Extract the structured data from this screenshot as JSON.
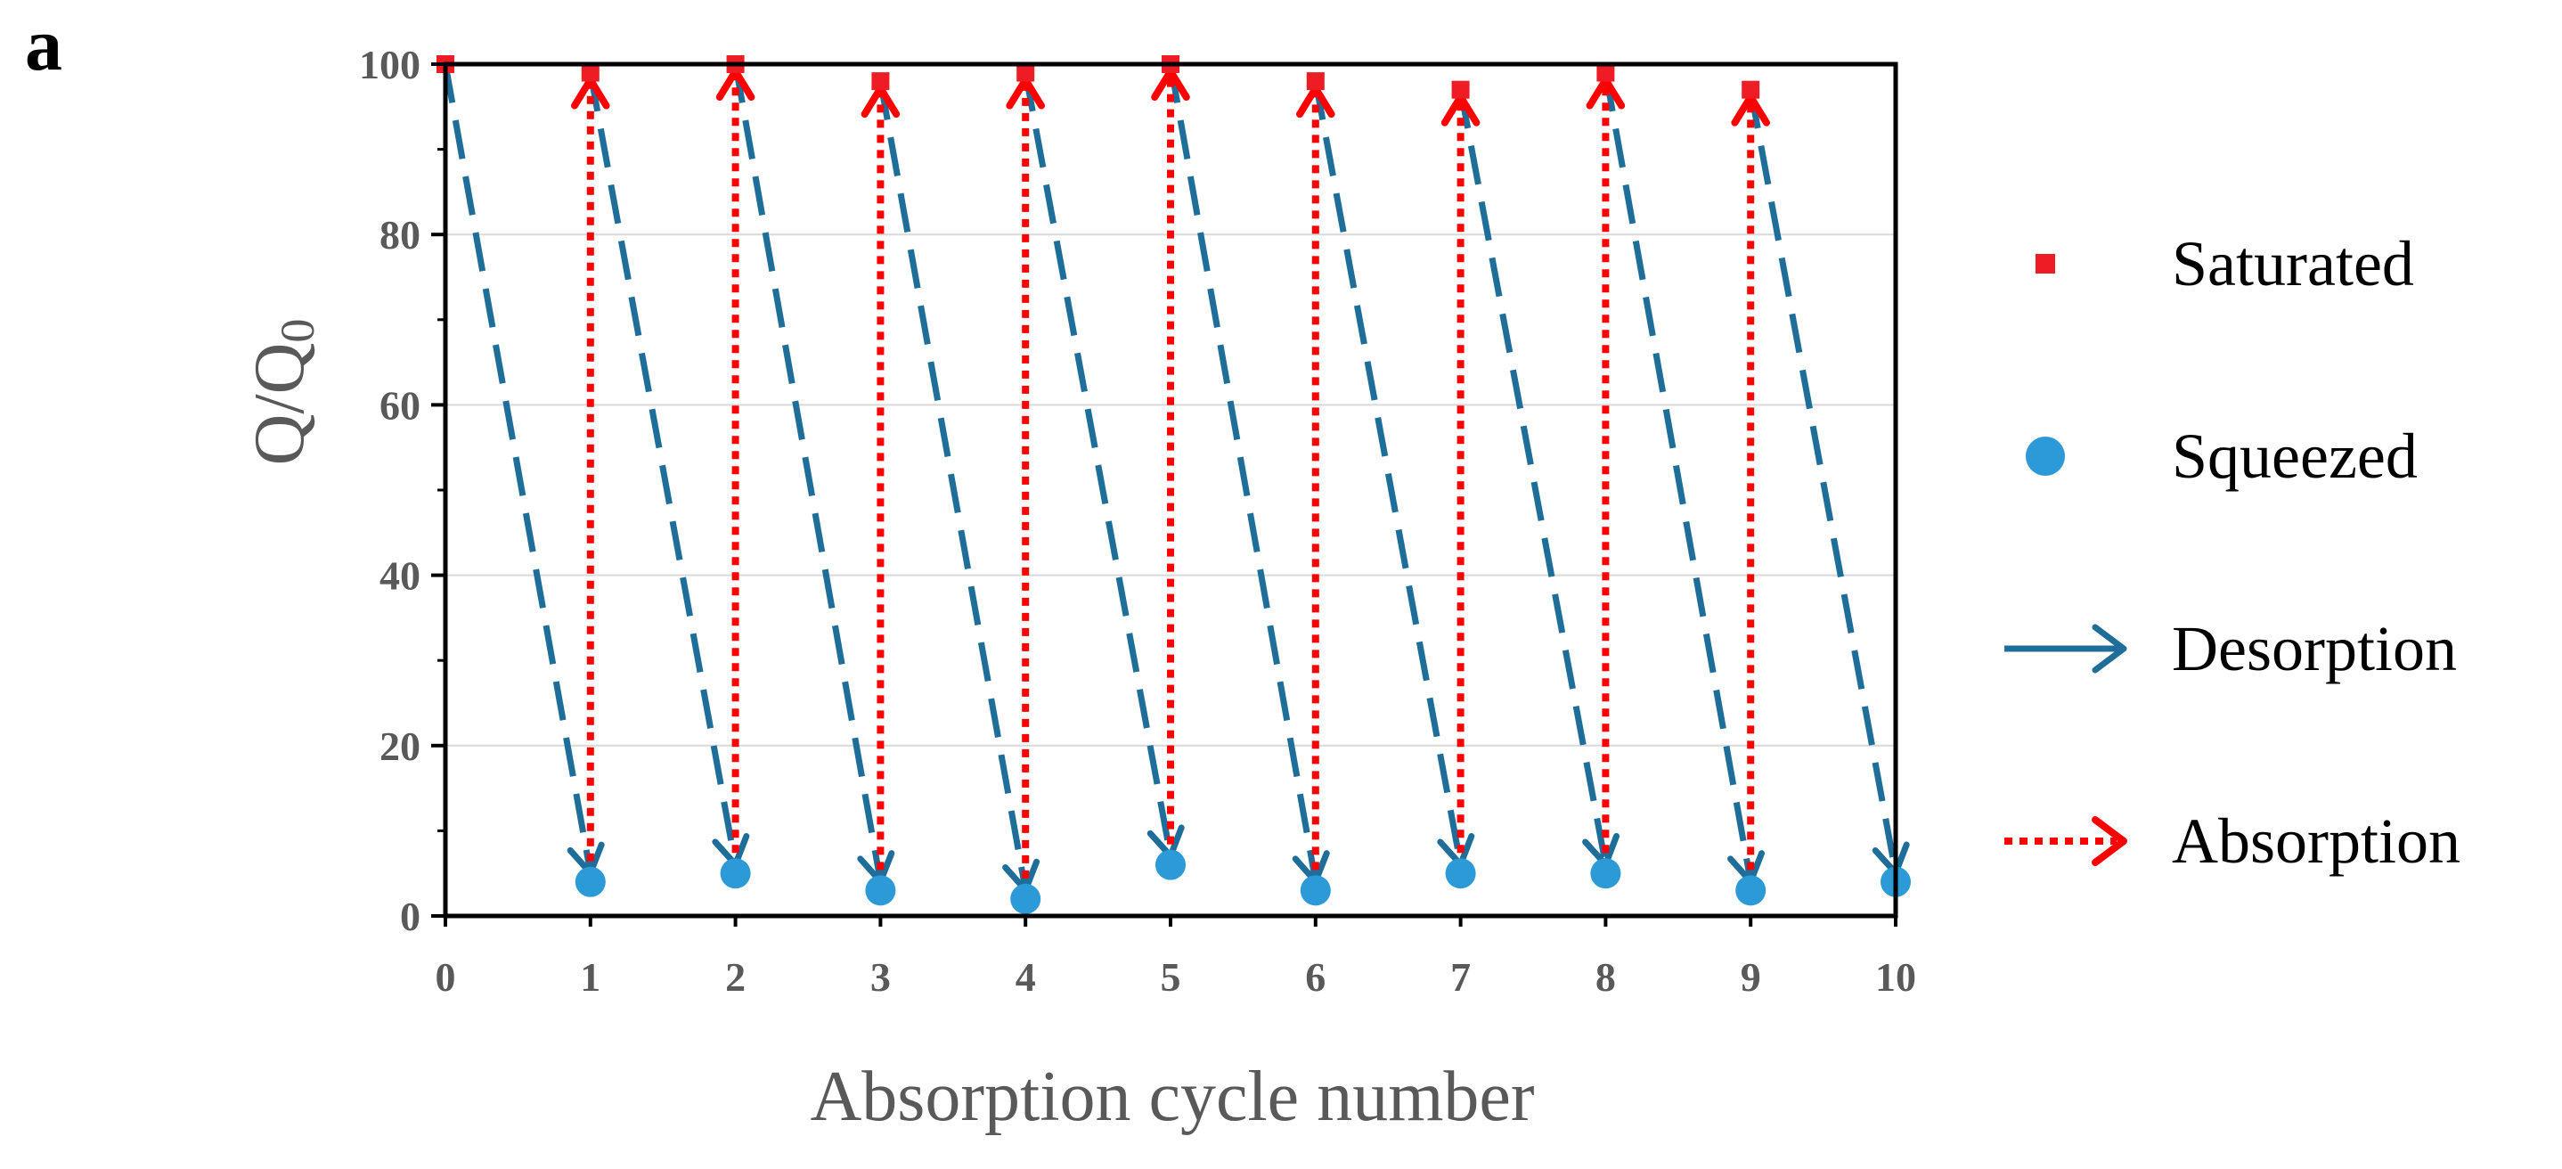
{
  "panel_label": "a",
  "colors": {
    "saturated": "#ee1c25",
    "squeezed": "#2b9ad6",
    "desorption": "#1f6e9a",
    "absorption": "#ff0000",
    "axis": "#000000",
    "grid": "#d9d9d9",
    "tick_text": "#595959",
    "label_text": "#595959"
  },
  "chart_data": {
    "type": "scatter",
    "xlabel": "Absorption cycle number",
    "ylabel_main": "Q/Q",
    "ylabel_sub": "0",
    "xlim": [
      0,
      10
    ],
    "ylim": [
      0,
      100
    ],
    "xticks": [
      0,
      1,
      2,
      3,
      4,
      5,
      6,
      7,
      8,
      9,
      10
    ],
    "yticks": [
      0,
      20,
      40,
      60,
      80,
      100
    ],
    "grid": "horizontal",
    "legend_position": "right",
    "series": [
      {
        "name": "Saturated",
        "marker": "square",
        "x": [
          0,
          1,
          2,
          3,
          4,
          5,
          6,
          7,
          8,
          9
        ],
        "y": [
          100,
          99,
          100,
          98,
          99,
          100,
          98,
          97,
          99,
          97
        ]
      },
      {
        "name": "Squeezed",
        "marker": "circle",
        "x": [
          1,
          2,
          3,
          4,
          5,
          6,
          7,
          8,
          9,
          10
        ],
        "y": [
          4,
          5,
          3,
          2,
          6,
          3,
          5,
          5,
          3,
          4
        ]
      }
    ],
    "arrows": [
      {
        "name": "Desorption",
        "style": "dashed"
      },
      {
        "name": "Absorption",
        "style": "dotted"
      }
    ],
    "legend": [
      "Saturated",
      "Squeezed",
      "Desorption",
      "Absorption"
    ]
  }
}
